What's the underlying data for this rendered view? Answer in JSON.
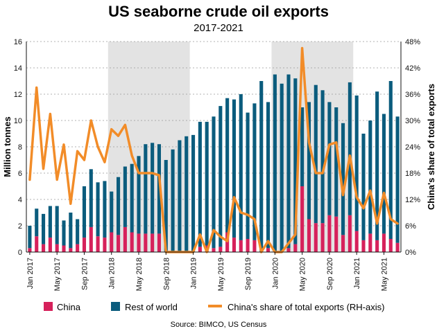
{
  "chart_data": {
    "type": "bar",
    "title": "US seaborne crude oil exports",
    "subtitle": "2017-2021",
    "ylabel": "Million tonnes",
    "y2label": "China's share of total exports",
    "ylim": [
      0,
      16
    ],
    "y2lim": [
      0,
      48
    ],
    "yticks": [
      0,
      2,
      4,
      6,
      8,
      10,
      12,
      14,
      16
    ],
    "y2ticks": [
      "0%",
      "6%",
      "12%",
      "18%",
      "24%",
      "30%",
      "36%",
      "42%",
      "48%"
    ],
    "xticks": [
      {
        "label": "Jan 2017",
        "index": 0
      },
      {
        "label": "May 2017",
        "index": 4
      },
      {
        "label": "Sep 2017",
        "index": 8
      },
      {
        "label": "Jan 2018",
        "index": 12
      },
      {
        "label": "May 2018",
        "index": 16
      },
      {
        "label": "Sep 2018",
        "index": 20
      },
      {
        "label": "Jan 2019",
        "index": 24
      },
      {
        "label": "May 2019",
        "index": 28
      },
      {
        "label": "Sep 2019",
        "index": 32
      },
      {
        "label": "Jan 2020",
        "index": 36
      },
      {
        "label": "May 2020",
        "index": 40
      },
      {
        "label": "Sep 2020",
        "index": 44
      },
      {
        "label": "Jan 2021",
        "index": 48
      },
      {
        "label": "May 2021",
        "index": 52
      }
    ],
    "categories": [
      "Jan 2017",
      "Feb 2017",
      "Mar 2017",
      "Apr 2017",
      "May 2017",
      "Jun 2017",
      "Jul 2017",
      "Aug 2017",
      "Sep 2017",
      "Oct 2017",
      "Nov 2017",
      "Dec 2017",
      "Jan 2018",
      "Feb 2018",
      "Mar 2018",
      "Apr 2018",
      "May 2018",
      "Jun 2018",
      "Jul 2018",
      "Aug 2018",
      "Sep 2018",
      "Oct 2018",
      "Nov 2018",
      "Dec 2018",
      "Jan 2019",
      "Feb 2019",
      "Mar 2019",
      "Apr 2019",
      "May 2019",
      "Jun 2019",
      "Jul 2019",
      "Aug 2019",
      "Sep 2019",
      "Oct 2019",
      "Nov 2019",
      "Dec 2019",
      "Jan 2020",
      "Feb 2020",
      "Mar 2020",
      "Apr 2020",
      "May 2020",
      "Jun 2020",
      "Jul 2020",
      "Aug 2020",
      "Sep 2020",
      "Oct 2020",
      "Nov 2020",
      "Dec 2020",
      "Jan 2021",
      "Feb 2021",
      "Mar 2021",
      "Apr 2021",
      "May 2021",
      "Jun 2021",
      "Jul 2021"
    ],
    "shaded_periods": [
      {
        "start": "Jan 2018",
        "end": "Dec 2018"
      },
      {
        "start": "Jan 2020",
        "end": "Dec 2020"
      }
    ],
    "series": [
      {
        "name": "China",
        "color": "#d6215b",
        "values": [
          0.3,
          1.2,
          0.6,
          1.1,
          0.6,
          0.5,
          0.3,
          0.6,
          1.1,
          1.9,
          1.2,
          1.1,
          1.5,
          1.3,
          1.9,
          1.5,
          1.4,
          1.4,
          1.4,
          1.4,
          0,
          0,
          0,
          0,
          0,
          0.4,
          0.5,
          0.3,
          0.4,
          1.5,
          1.1,
          0.9,
          1.0,
          0.9,
          0,
          0.3,
          0,
          0,
          0.3,
          0.6,
          5.0,
          2.5,
          2.2,
          2.2,
          2.8,
          2.7,
          1.3,
          2.8,
          1.6,
          0.9,
          1.4,
          0.9,
          1.4,
          1.0,
          0.7
        ]
      },
      {
        "name": "Rest of world",
        "color": "#0b5c7d",
        "values": [
          1.7,
          2.1,
          2.3,
          2.4,
          2.9,
          1.9,
          2.7,
          1.9,
          3.9,
          4.4,
          4.1,
          4.3,
          3.1,
          4.4,
          4.6,
          5.2,
          5.9,
          6.8,
          6.9,
          6.8,
          7.0,
          7.8,
          8.5,
          8.8,
          8.9,
          9.5,
          9.4,
          10.0,
          10.7,
          10.2,
          10.5,
          11.1,
          9.6,
          10.4,
          13.0,
          11.1,
          13.5,
          12.8,
          13.2,
          12.6,
          6.0,
          8.9,
          10.5,
          10.1,
          8.6,
          8.3,
          8.5,
          10.1,
          10.3,
          8.1,
          8.6,
          11.3,
          9.1,
          12.0,
          9.6
        ]
      },
      {
        "name": "China's share of total exports (RH-axis)",
        "color": "#f28c28",
        "axis": "right",
        "values": [
          16.5,
          37.5,
          19,
          31.5,
          16.5,
          24.5,
          11,
          23,
          21,
          30,
          24,
          20.5,
          28,
          26.5,
          29,
          22,
          18,
          18,
          18,
          17.5,
          0,
          0,
          0,
          0,
          0,
          4,
          0,
          5,
          3.5,
          2.5,
          12.5,
          9,
          8.5,
          7.5,
          0,
          2.5,
          0,
          0,
          2,
          4,
          46.5,
          25,
          18,
          18,
          24.5,
          25,
          13,
          22,
          12.5,
          10,
          14,
          6.5,
          13.5,
          7.5,
          6.5
        ]
      }
    ],
    "source": "Source: BIMCO, US Census"
  }
}
